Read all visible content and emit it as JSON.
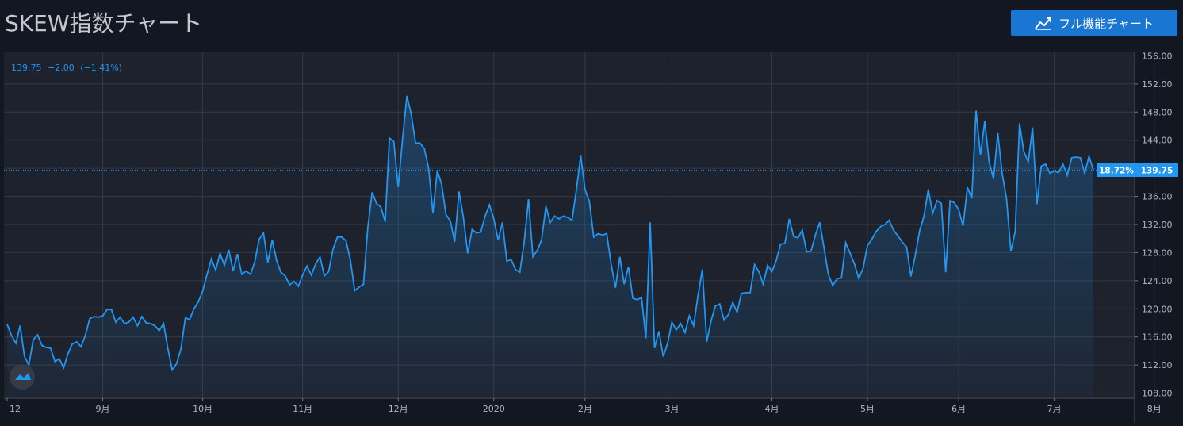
{
  "header": {
    "title": "SKEW指数チャート",
    "full_chart_label": "フル機能チャート",
    "full_chart_icon": "chart-line-icon"
  },
  "legend": {
    "last": "139.75",
    "change": "−2.00",
    "change_pct": "(−1.41%)",
    "color": "#2196f3"
  },
  "price_label": {
    "pct": "18.72%",
    "value": "139.75"
  },
  "colors": {
    "background": "#131722",
    "plot": "#1e222d",
    "grid": "#363a45",
    "line": "#2196f3",
    "button": "#1976d2"
  },
  "watermark_icon": "tradingview-logo-icon",
  "chart_data": {
    "type": "area",
    "title": "SKEW指数チャート",
    "y_ticks": [
      "156.00",
      "152.00",
      "148.00",
      "144.00",
      "140.00",
      "136.00",
      "132.00",
      "128.00",
      "124.00",
      "120.00",
      "116.00",
      "112.00",
      "108.00"
    ],
    "ylim": [
      107.5,
      156.5
    ],
    "x_ticks": [
      "12",
      "9月",
      "10月",
      "11月",
      "12月",
      "2020",
      "2月",
      "3月",
      "4月",
      "5月",
      "6月",
      "7月",
      "8月"
    ],
    "x_tick_index": [
      0,
      22,
      45,
      68,
      90,
      112,
      133,
      153,
      176,
      198,
      219,
      241,
      264
    ],
    "grid": true,
    "series": [
      {
        "values": [
          117.8,
          116.2,
          115.1,
          117.6,
          113.2,
          112.0,
          115.6,
          116.3,
          114.8,
          114.5,
          114.4,
          112.5,
          112.9,
          111.6,
          113.6,
          115.0,
          115.3,
          114.6,
          116.2,
          118.6,
          118.9,
          118.8,
          119.0,
          119.9,
          119.9,
          118.1,
          118.8,
          117.9,
          118.1,
          118.8,
          117.6,
          118.9,
          118.0,
          117.9,
          117.6,
          116.9,
          117.9,
          114.3,
          111.3,
          112.2,
          114.3,
          118.7,
          118.5,
          120.0,
          121.0,
          122.5,
          124.9,
          127.1,
          125.5,
          127.9,
          126.2,
          128.4,
          125.4,
          127.8,
          124.9,
          125.4,
          124.9,
          126.7,
          129.9,
          130.8,
          126.6,
          129.8,
          126.9,
          125.2,
          124.7,
          123.4,
          123.9,
          123.2,
          124.8,
          126.1,
          124.8,
          126.4,
          127.4,
          124.7,
          125.3,
          128.5,
          130.2,
          130.2,
          129.7,
          126.9,
          122.6,
          123.1,
          123.5,
          131.5,
          136.6,
          135.0,
          134.5,
          132.4,
          144.3,
          143.8,
          137.3,
          144.2,
          150.3,
          147.7,
          143.6,
          143.6,
          142.8,
          140.0,
          133.6,
          139.7,
          137.7,
          133.4,
          132.5,
          129.5,
          136.7,
          133.0,
          127.9,
          131.3,
          130.8,
          130.9,
          133.2,
          134.8,
          132.8,
          129.8,
          132.3,
          126.8,
          127.0,
          125.6,
          125.2,
          129.5,
          135.6,
          127.4,
          128.3,
          129.8,
          134.6,
          132.3,
          133.2,
          132.8,
          133.2,
          133.0,
          132.6,
          136.9,
          141.8,
          137.0,
          135.3,
          130.2,
          130.7,
          130.5,
          130.7,
          126.4,
          123.0,
          127.4,
          123.5,
          126.0,
          121.5,
          121.3,
          121.6,
          115.8,
          132.3,
          114.4,
          116.8,
          113.2,
          115.1,
          118.1,
          117.0,
          117.9,
          116.6,
          119.0,
          117.6,
          121.9,
          125.6,
          115.3,
          118.3,
          120.4,
          120.7,
          118.4,
          119.2,
          120.9,
          119.5,
          122.2,
          122.3,
          122.3,
          126.3,
          125.3,
          123.5,
          126.2,
          125.3,
          126.9,
          129.2,
          129.3,
          132.8,
          130.3,
          130.1,
          131.2,
          128.1,
          128.2,
          130.5,
          132.3,
          128.7,
          124.9,
          123.3,
          124.3,
          124.4,
          129.4,
          127.9,
          126.4,
          124.3,
          125.8,
          129.0,
          129.9,
          131.0,
          131.7,
          132.0,
          132.6,
          131.2,
          130.4,
          129.5,
          128.8,
          124.6,
          127.6,
          131.1,
          133.2,
          137.0,
          133.6,
          135.4,
          135.0,
          125.2,
          135.4,
          135.1,
          134.1,
          131.8,
          137.3,
          135.7,
          148.2,
          141.9,
          146.7,
          140.9,
          138.5,
          145.0,
          139.3,
          135.7,
          128.2,
          131.0,
          146.4,
          142.4,
          140.9,
          145.8,
          134.9,
          140.3,
          140.6,
          139.3,
          139.6,
          139.4,
          140.6,
          139.0,
          141.5,
          141.6,
          141.5,
          139.3,
          141.7,
          139.75
        ]
      }
    ]
  }
}
